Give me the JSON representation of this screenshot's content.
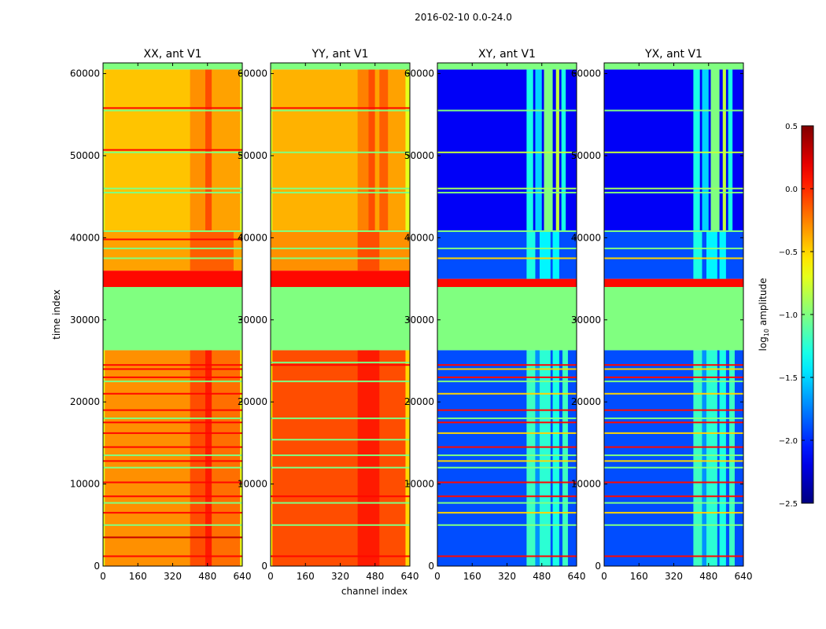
{
  "chart_data": {
    "type": "heatmap",
    "suptitle": "2016-02-10 0.0-24.0",
    "xlabel": "channel index",
    "ylabel": "time index",
    "xlim": [
      0,
      640
    ],
    "ylim": [
      0,
      61300
    ],
    "xticks": [
      "0",
      "160",
      "320",
      "480",
      "640"
    ],
    "xtick_values": [
      0,
      160,
      320,
      480,
      640
    ],
    "yticks": [
      "0",
      "10000",
      "20000",
      "30000",
      "40000",
      "50000",
      "60000"
    ],
    "ytick_values": [
      0,
      10000,
      20000,
      30000,
      40000,
      50000,
      60000
    ],
    "colorbar": {
      "label": "log10 amplitude",
      "label_main": "log",
      "label_sub": "10",
      "label_rest": " amplitude",
      "range": [
        -2.5,
        0.5
      ],
      "colormap": "jet",
      "ticks": [
        "0.5",
        "0.0",
        "−0.5",
        "−1.0",
        "−1.5",
        "−2.0",
        "−2.5"
      ],
      "tick_values": [
        0.5,
        0,
        -0.5,
        -1,
        -1.5,
        -2,
        -2.5
      ]
    },
    "panels": [
      {
        "title": "XX, ant V1",
        "regions": [
          {
            "t": [
              0,
              26300
            ],
            "base": -0.3,
            "cols": [
              [
                0,
                8,
                -0.7
              ],
              [
                400,
                470,
                -0.1
              ],
              [
                470,
                500,
                0.05
              ],
              [
                500,
                640,
                -0.2
              ],
              [
                630,
                640,
                -0.7
              ]
            ]
          },
          {
            "t": [
              26300,
              34000
            ],
            "base": -1.0,
            "cols": []
          },
          {
            "t": [
              34000,
              36000
            ],
            "base": 0.1,
            "cols": []
          },
          {
            "t": [
              36000,
              40900
            ],
            "base": -0.35,
            "cols": [
              [
                400,
                600,
                -0.15
              ]
            ]
          },
          {
            "t": [
              40900,
              60500
            ],
            "base": -0.45,
            "cols": [
              [
                0,
                8,
                -0.75
              ],
              [
                400,
                470,
                -0.3
              ],
              [
                470,
                500,
                -0.1
              ],
              [
                500,
                640,
                -0.35
              ],
              [
                630,
                640,
                -0.75
              ]
            ]
          },
          {
            "t": [
              60500,
              61300
            ],
            "base": -1.0,
            "cols": []
          }
        ],
        "lines": [
          [
            55500,
            -1.0
          ],
          [
            55800,
            0.1
          ],
          [
            50400,
            -1.0
          ],
          [
            50700,
            0.1
          ],
          [
            46000,
            -1.0
          ],
          [
            45500,
            -1.0
          ],
          [
            40800,
            -1.0
          ],
          [
            39800,
            0.1
          ],
          [
            38700,
            -1.0
          ],
          [
            37500,
            -1.0
          ],
          [
            24500,
            0.1
          ],
          [
            24000,
            0.1
          ],
          [
            23000,
            0.1
          ],
          [
            22500,
            -1.0
          ],
          [
            21000,
            0.1
          ],
          [
            19000,
            0.1
          ],
          [
            18000,
            -1.0
          ],
          [
            17500,
            0.1
          ],
          [
            16200,
            0.1
          ],
          [
            14500,
            0.1
          ],
          [
            13500,
            -1.0
          ],
          [
            12800,
            0.1
          ],
          [
            12000,
            -1.0
          ],
          [
            10200,
            0.1
          ],
          [
            8500,
            0.1
          ],
          [
            7700,
            -1.0
          ],
          [
            6500,
            0.1
          ],
          [
            5000,
            -1.0
          ],
          [
            3500,
            0.3
          ],
          [
            1200,
            0.1
          ]
        ]
      },
      {
        "title": "YY, ant V1",
        "regions": [
          {
            "t": [
              0,
              26300
            ],
            "base": -0.1,
            "cols": [
              [
                0,
                8,
                -0.6
              ],
              [
                400,
                500,
                0.05
              ],
              [
                620,
                640,
                -0.5
              ]
            ]
          },
          {
            "t": [
              26300,
              34000
            ],
            "base": -1.0,
            "cols": []
          },
          {
            "t": [
              34000,
              36000
            ],
            "base": 0.1,
            "cols": []
          },
          {
            "t": [
              36000,
              40900
            ],
            "base": -0.3,
            "cols": [
              [
                400,
                500,
                -0.1
              ]
            ]
          },
          {
            "t": [
              40900,
              60500
            ],
            "base": -0.4,
            "cols": [
              [
                0,
                8,
                -0.75
              ],
              [
                400,
                450,
                -0.25
              ],
              [
                450,
                480,
                -0.1
              ],
              [
                480,
                500,
                -0.35
              ],
              [
                500,
                540,
                -0.15
              ],
              [
                540,
                640,
                -0.35
              ],
              [
                620,
                640,
                -0.7
              ]
            ]
          },
          {
            "t": [
              60500,
              61300
            ],
            "base": -1.0,
            "cols": []
          }
        ],
        "lines": [
          [
            55500,
            -1.0
          ],
          [
            55800,
            0.1
          ],
          [
            50400,
            -1.0
          ],
          [
            46000,
            -1.0
          ],
          [
            45500,
            -1.0
          ],
          [
            40800,
            -1.0
          ],
          [
            38700,
            -1.0
          ],
          [
            37500,
            -1.0
          ],
          [
            24800,
            -1.0
          ],
          [
            24500,
            0.1
          ],
          [
            22500,
            -1.0
          ],
          [
            18000,
            -1.0
          ],
          [
            15400,
            -1.0
          ],
          [
            13500,
            -1.0
          ],
          [
            12000,
            -1.0
          ],
          [
            8500,
            0.1
          ],
          [
            7700,
            -1.0
          ],
          [
            5000,
            -1.0
          ],
          [
            1200,
            0.1
          ]
        ]
      },
      {
        "title": "XY, ant V1",
        "regions": [
          {
            "t": [
              0,
              26300
            ],
            "base": -1.9,
            "cols": [
              [
                410,
                450,
                -1.2
              ],
              [
                450,
                470,
                -1.7
              ],
              [
                470,
                520,
                -1.25
              ],
              [
                530,
                560,
                -1.3
              ],
              [
                575,
                600,
                -1.2
              ]
            ]
          },
          {
            "t": [
              26300,
              34000
            ],
            "base": -1.0,
            "cols": []
          },
          {
            "t": [
              34000,
              35000
            ],
            "base": 0.1,
            "cols": []
          },
          {
            "t": [
              35000,
              40900
            ],
            "base": -1.9,
            "cols": [
              [
                410,
                450,
                -1.3
              ],
              [
                470,
                520,
                -1.4
              ],
              [
                530,
                560,
                -1.4
              ]
            ]
          },
          {
            "t": [
              40900,
              60500
            ],
            "base": -2.15,
            "cols": [
              [
                410,
                440,
                -1.3
              ],
              [
                450,
                480,
                -1.5
              ],
              [
                490,
                530,
                -1.0
              ],
              [
                545,
                560,
                -0.8
              ],
              [
                570,
                590,
                -1.3
              ]
            ]
          },
          {
            "t": [
              60500,
              61300
            ],
            "base": -1.0,
            "cols": []
          }
        ],
        "lines": [
          [
            55500,
            -1.0
          ],
          [
            50400,
            -0.8
          ],
          [
            46000,
            -0.9
          ],
          [
            45500,
            -1.0
          ],
          [
            40800,
            -1.0
          ],
          [
            38700,
            -1.0
          ],
          [
            37500,
            -0.5
          ],
          [
            24500,
            0.1
          ],
          [
            24000,
            -0.5
          ],
          [
            23000,
            0.1
          ],
          [
            22500,
            -1.0
          ],
          [
            21000,
            -0.5
          ],
          [
            19000,
            0.1
          ],
          [
            18000,
            -1.0
          ],
          [
            17500,
            0.1
          ],
          [
            16200,
            -0.5
          ],
          [
            14500,
            0.1
          ],
          [
            13500,
            -1.0
          ],
          [
            12800,
            -0.5
          ],
          [
            12000,
            -1.0
          ],
          [
            10200,
            0.1
          ],
          [
            8500,
            0.1
          ],
          [
            7700,
            -1.0
          ],
          [
            6500,
            -0.5
          ],
          [
            5000,
            -1.0
          ],
          [
            1200,
            0.1
          ]
        ]
      },
      {
        "title": "YX, ant V1",
        "regions": [
          {
            "t": [
              0,
              26300
            ],
            "base": -1.9,
            "cols": [
              [
                410,
                450,
                -1.2
              ],
              [
                450,
                470,
                -1.7
              ],
              [
                470,
                520,
                -1.25
              ],
              [
                530,
                560,
                -1.3
              ],
              [
                575,
                600,
                -1.2
              ]
            ]
          },
          {
            "t": [
              26300,
              34000
            ],
            "base": -1.0,
            "cols": []
          },
          {
            "t": [
              34000,
              35000
            ],
            "base": 0.1,
            "cols": []
          },
          {
            "t": [
              35000,
              40900
            ],
            "base": -1.9,
            "cols": [
              [
                410,
                450,
                -1.3
              ],
              [
                470,
                520,
                -1.4
              ],
              [
                530,
                560,
                -1.4
              ]
            ]
          },
          {
            "t": [
              40900,
              60500
            ],
            "base": -2.15,
            "cols": [
              [
                410,
                440,
                -1.3
              ],
              [
                450,
                480,
                -1.5
              ],
              [
                490,
                530,
                -1.0
              ],
              [
                545,
                560,
                -0.8
              ],
              [
                570,
                590,
                -1.3
              ]
            ]
          },
          {
            "t": [
              60500,
              61300
            ],
            "base": -1.0,
            "cols": []
          }
        ],
        "lines": [
          [
            55500,
            -1.0
          ],
          [
            50400,
            -0.8
          ],
          [
            46000,
            -0.9
          ],
          [
            45500,
            -1.0
          ],
          [
            40800,
            -1.0
          ],
          [
            38700,
            -1.0
          ],
          [
            37500,
            -0.5
          ],
          [
            24500,
            0.1
          ],
          [
            24000,
            -0.5
          ],
          [
            23000,
            0.1
          ],
          [
            22500,
            -1.0
          ],
          [
            21000,
            -0.5
          ],
          [
            19000,
            0.1
          ],
          [
            18000,
            -1.0
          ],
          [
            17500,
            0.1
          ],
          [
            16200,
            -0.5
          ],
          [
            14500,
            0.1
          ],
          [
            13500,
            -1.0
          ],
          [
            12800,
            -0.5
          ],
          [
            12000,
            -1.0
          ],
          [
            10200,
            0.1
          ],
          [
            8500,
            0.1
          ],
          [
            7700,
            -1.0
          ],
          [
            6500,
            -0.5
          ],
          [
            5000,
            -1.0
          ],
          [
            1200,
            0.1
          ]
        ]
      }
    ]
  }
}
